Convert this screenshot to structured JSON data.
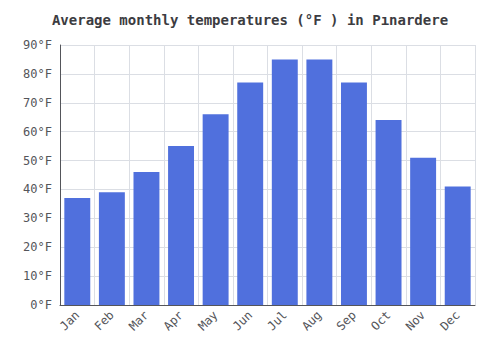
{
  "chart_data": {
    "type": "bar",
    "title": "Average monthly temperatures (°F ) in Pınardere",
    "categories": [
      "Jan",
      "Feb",
      "Mar",
      "Apr",
      "May",
      "Jun",
      "Jul",
      "Aug",
      "Sep",
      "Oct",
      "Nov",
      "Dec"
    ],
    "values": [
      37,
      39,
      46,
      55,
      66,
      77,
      85,
      85,
      77,
      64,
      51,
      41
    ],
    "ylim": [
      0,
      90
    ],
    "yticks": [
      {
        "value": 0,
        "label": "0°F"
      },
      {
        "value": 10,
        "label": "10°F"
      },
      {
        "value": 20,
        "label": "20°F"
      },
      {
        "value": 30,
        "label": "30°F"
      },
      {
        "value": 40,
        "label": "40°F"
      },
      {
        "value": 50,
        "label": "50°F"
      },
      {
        "value": 60,
        "label": "60°F"
      },
      {
        "value": 70,
        "label": "70°F"
      },
      {
        "value": 80,
        "label": "80°F"
      },
      {
        "value": 90,
        "label": "90°F"
      }
    ],
    "grid": true
  }
}
